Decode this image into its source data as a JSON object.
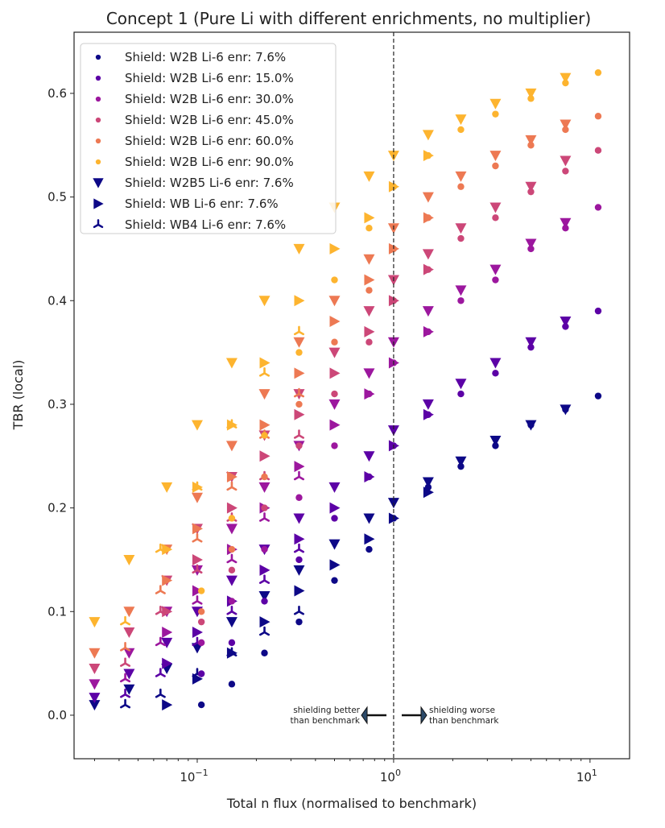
{
  "chart_data": {
    "type": "scatter",
    "title": "Concept 1 (Pure Li with different enrichments, no multiplier)",
    "xlabel": "Total n flux (normalised to benchmark)",
    "ylabel": "TBR (local)",
    "xscale": "log",
    "xlim": [
      0.0236,
      15.9
    ],
    "ylim": [
      -0.042,
      0.659
    ],
    "xticks": [
      {
        "value": 0.1,
        "base": "10",
        "exp": "−1"
      },
      {
        "value": 1,
        "base": "10",
        "exp": "0"
      },
      {
        "value": 10,
        "base": "10",
        "exp": "1"
      }
    ],
    "yticks": [
      {
        "value": 0.0,
        "label": "0.0"
      },
      {
        "value": 0.1,
        "label": "0.1"
      },
      {
        "value": 0.2,
        "label": "0.2"
      },
      {
        "value": 0.3,
        "label": "0.3"
      },
      {
        "value": 0.4,
        "label": "0.4"
      },
      {
        "value": 0.5,
        "label": "0.5"
      },
      {
        "value": 0.6,
        "label": "0.6"
      }
    ],
    "grid": false,
    "legend_position": "top-left",
    "reference_line": {
      "x": 1,
      "style": "dashed"
    },
    "annotations": {
      "left": [
        "shielding better",
        "than benchmark"
      ],
      "right": [
        "shielding worse",
        "than benchmark"
      ]
    },
    "legend": [
      {
        "label": "Shield: W2B Li-6 enr: 7.6%",
        "marker": "circle",
        "color": "#0d0887"
      },
      {
        "label": "Shield: W2B Li-6 enr: 15.0%",
        "marker": "circle",
        "color": "#5c01a6"
      },
      {
        "label": "Shield: W2B Li-6 enr: 30.0%",
        "marker": "circle",
        "color": "#9c179e"
      },
      {
        "label": "Shield: W2B Li-6 enr: 45.0%",
        "marker": "circle",
        "color": "#cc4778"
      },
      {
        "label": "Shield: W2B Li-6 enr: 60.0%",
        "marker": "circle",
        "color": "#ed7953"
      },
      {
        "label": "Shield: W2B Li-6 enr: 90.0%",
        "marker": "circle",
        "color": "#fdb42f"
      },
      {
        "label": "Shield: W2B5 Li-6 enr: 7.6%",
        "marker": "triangle-down",
        "color": "#0d0887"
      },
      {
        "label": "Shield: WB Li-6 enr: 7.6%",
        "marker": "triangle-right",
        "color": "#0d0887"
      },
      {
        "label": "Shield: WB4 Li-6 enr: 7.6%",
        "marker": "tri",
        "color": "#0d0887"
      }
    ],
    "x_by_shield": {
      "W2B": [
        0.105,
        0.15,
        0.22,
        0.33,
        0.5,
        0.75,
        1,
        1.5,
        2.2,
        3.3,
        5,
        7.5,
        11
      ],
      "W2B5": [
        0.03,
        0.045,
        0.07,
        0.1,
        0.15,
        0.22,
        0.33,
        0.5,
        0.75,
        1,
        1.5,
        2.2,
        3.3,
        5,
        7.5
      ],
      "WB": [
        0.07,
        0.1,
        0.15,
        0.22,
        0.33,
        0.5,
        0.75,
        1,
        1.5
      ],
      "WB4": [
        0.043,
        0.065,
        0.1,
        0.15,
        0.22,
        0.33
      ]
    },
    "series": [
      {
        "enrichment": "7.6%",
        "color": "#0d0887",
        "W2B": [
          0.01,
          0.03,
          0.06,
          0.09,
          0.13,
          0.16,
          0.19,
          0.22,
          0.24,
          0.26,
          0.28,
          0.295,
          0.308
        ],
        "W2B5": [
          0.01,
          0.025,
          0.045,
          0.065,
          0.09,
          0.115,
          0.14,
          0.165,
          0.19,
          0.205,
          0.225,
          0.245,
          0.265,
          0.28,
          0.295
        ],
        "WB": [
          0.01,
          0.035,
          0.06,
          0.09,
          0.12,
          0.145,
          0.17,
          0.19,
          0.215
        ],
        "WB4": [
          0.01,
          0.02,
          0.04,
          0.06,
          0.08,
          0.1
        ]
      },
      {
        "enrichment": "15.0%",
        "color": "#5c01a6",
        "W2B": [
          0.04,
          0.07,
          0.11,
          0.15,
          0.19,
          0.23,
          0.26,
          0.29,
          0.31,
          0.33,
          0.355,
          0.375,
          0.39
        ],
        "W2B5": [
          0.017,
          0.04,
          0.07,
          0.1,
          0.13,
          0.16,
          0.19,
          0.22,
          0.25,
          0.275,
          0.3,
          0.32,
          0.34,
          0.36,
          0.38
        ],
        "WB": [
          0.05,
          0.08,
          0.11,
          0.14,
          0.17,
          0.2,
          0.23,
          0.26,
          0.29
        ],
        "WB4": [
          0.02,
          0.04,
          0.07,
          0.1,
          0.13,
          0.16
        ]
      },
      {
        "enrichment": "30.0%",
        "color": "#9c179e",
        "W2B": [
          0.07,
          0.11,
          0.16,
          0.21,
          0.26,
          0.31,
          0.34,
          0.37,
          0.4,
          0.42,
          0.45,
          0.47,
          0.49
        ],
        "W2B5": [
          0.03,
          0.06,
          0.1,
          0.14,
          0.18,
          0.22,
          0.26,
          0.3,
          0.33,
          0.36,
          0.39,
          0.41,
          0.43,
          0.455,
          0.475
        ],
        "WB": [
          0.08,
          0.12,
          0.16,
          0.2,
          0.24,
          0.28,
          0.31,
          0.34,
          0.37
        ],
        "WB4": [
          0.035,
          0.07,
          0.11,
          0.15,
          0.19,
          0.23
        ]
      },
      {
        "enrichment": "45.0%",
        "color": "#cc4778",
        "W2B": [
          0.09,
          0.14,
          0.2,
          0.26,
          0.31,
          0.36,
          0.4,
          0.43,
          0.46,
          0.48,
          0.505,
          0.525,
          0.545
        ],
        "W2B5": [
          0.045,
          0.08,
          0.13,
          0.18,
          0.23,
          0.27,
          0.31,
          0.35,
          0.39,
          0.42,
          0.445,
          0.47,
          0.49,
          0.51,
          0.535
        ],
        "WB": [
          0.1,
          0.15,
          0.2,
          0.25,
          0.29,
          0.33,
          0.37,
          0.4,
          0.43
        ],
        "WB4": [
          0.05,
          0.1,
          0.14,
          0.19,
          0.23,
          0.27
        ]
      },
      {
        "enrichment": "60.0%",
        "color": "#ed7953",
        "W2B": [
          0.1,
          0.16,
          0.23,
          0.3,
          0.36,
          0.41,
          0.45,
          0.48,
          0.51,
          0.53,
          0.55,
          0.565,
          0.578
        ],
        "W2B5": [
          0.06,
          0.1,
          0.16,
          0.21,
          0.26,
          0.31,
          0.36,
          0.4,
          0.44,
          0.47,
          0.5,
          0.52,
          0.54,
          0.555,
          0.57
        ],
        "WB": [
          0.13,
          0.18,
          0.23,
          0.28,
          0.33,
          0.38,
          0.42,
          0.45,
          0.48
        ],
        "WB4": [
          0.065,
          0.12,
          0.17,
          0.22,
          0.27,
          0.31
        ]
      },
      {
        "enrichment": "90.0%",
        "color": "#fdb42f",
        "W2B": [
          0.12,
          0.19,
          0.27,
          0.35,
          0.42,
          0.47,
          0.51,
          0.54,
          0.565,
          0.58,
          0.595,
          0.61,
          0.62
        ],
        "W2B5": [
          0.09,
          0.15,
          0.22,
          0.28,
          0.34,
          0.4,
          0.45,
          0.49,
          0.52,
          0.54,
          0.56,
          0.575,
          0.59,
          0.6,
          0.615
        ],
        "WB": [
          0.16,
          0.22,
          0.28,
          0.34,
          0.4,
          0.45,
          0.48,
          0.51,
          0.54
        ],
        "WB4": [
          0.09,
          0.16,
          0.22,
          0.28,
          0.33,
          0.37
        ]
      }
    ]
  }
}
